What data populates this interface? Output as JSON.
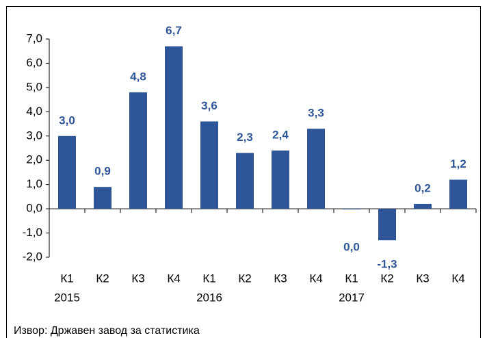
{
  "chart_data": {
    "type": "bar",
    "categories": [
      "К1",
      "К2",
      "К3",
      "К4",
      "К1",
      "К2",
      "К3",
      "К4",
      "К1",
      "К2",
      "К3",
      "К4"
    ],
    "groups": [
      "2015",
      "2016",
      "2017"
    ],
    "values": [
      3.0,
      0.9,
      4.8,
      6.7,
      3.6,
      2.3,
      2.4,
      3.3,
      0,
      -1.3,
      0.2,
      1.2
    ],
    "value_labels": [
      "3,0",
      "0,9",
      "4,8",
      "6,7",
      "3,6",
      "2,3",
      "2,4",
      "3,3",
      "0,0",
      "-1,3",
      "0,2",
      "1,2"
    ],
    "color": "#2e5597",
    "ylim": [
      -2,
      7
    ],
    "yticks": [
      {
        "value": -2,
        "label": "-2,0"
      },
      {
        "value": -1,
        "label": "-1,0"
      },
      {
        "value": 0,
        "label": "0,0"
      },
      {
        "value": 1,
        "label": "1,0"
      },
      {
        "value": 2,
        "label": "2,0"
      },
      {
        "value": 3,
        "label": "3,0"
      },
      {
        "value": 4,
        "label": "4,0"
      },
      {
        "value": 5,
        "label": "5,0"
      },
      {
        "value": 6,
        "label": "6,0"
      },
      {
        "value": 7,
        "label": "7,0"
      }
    ],
    "source": "Извор: Државен завод за статистика"
  }
}
